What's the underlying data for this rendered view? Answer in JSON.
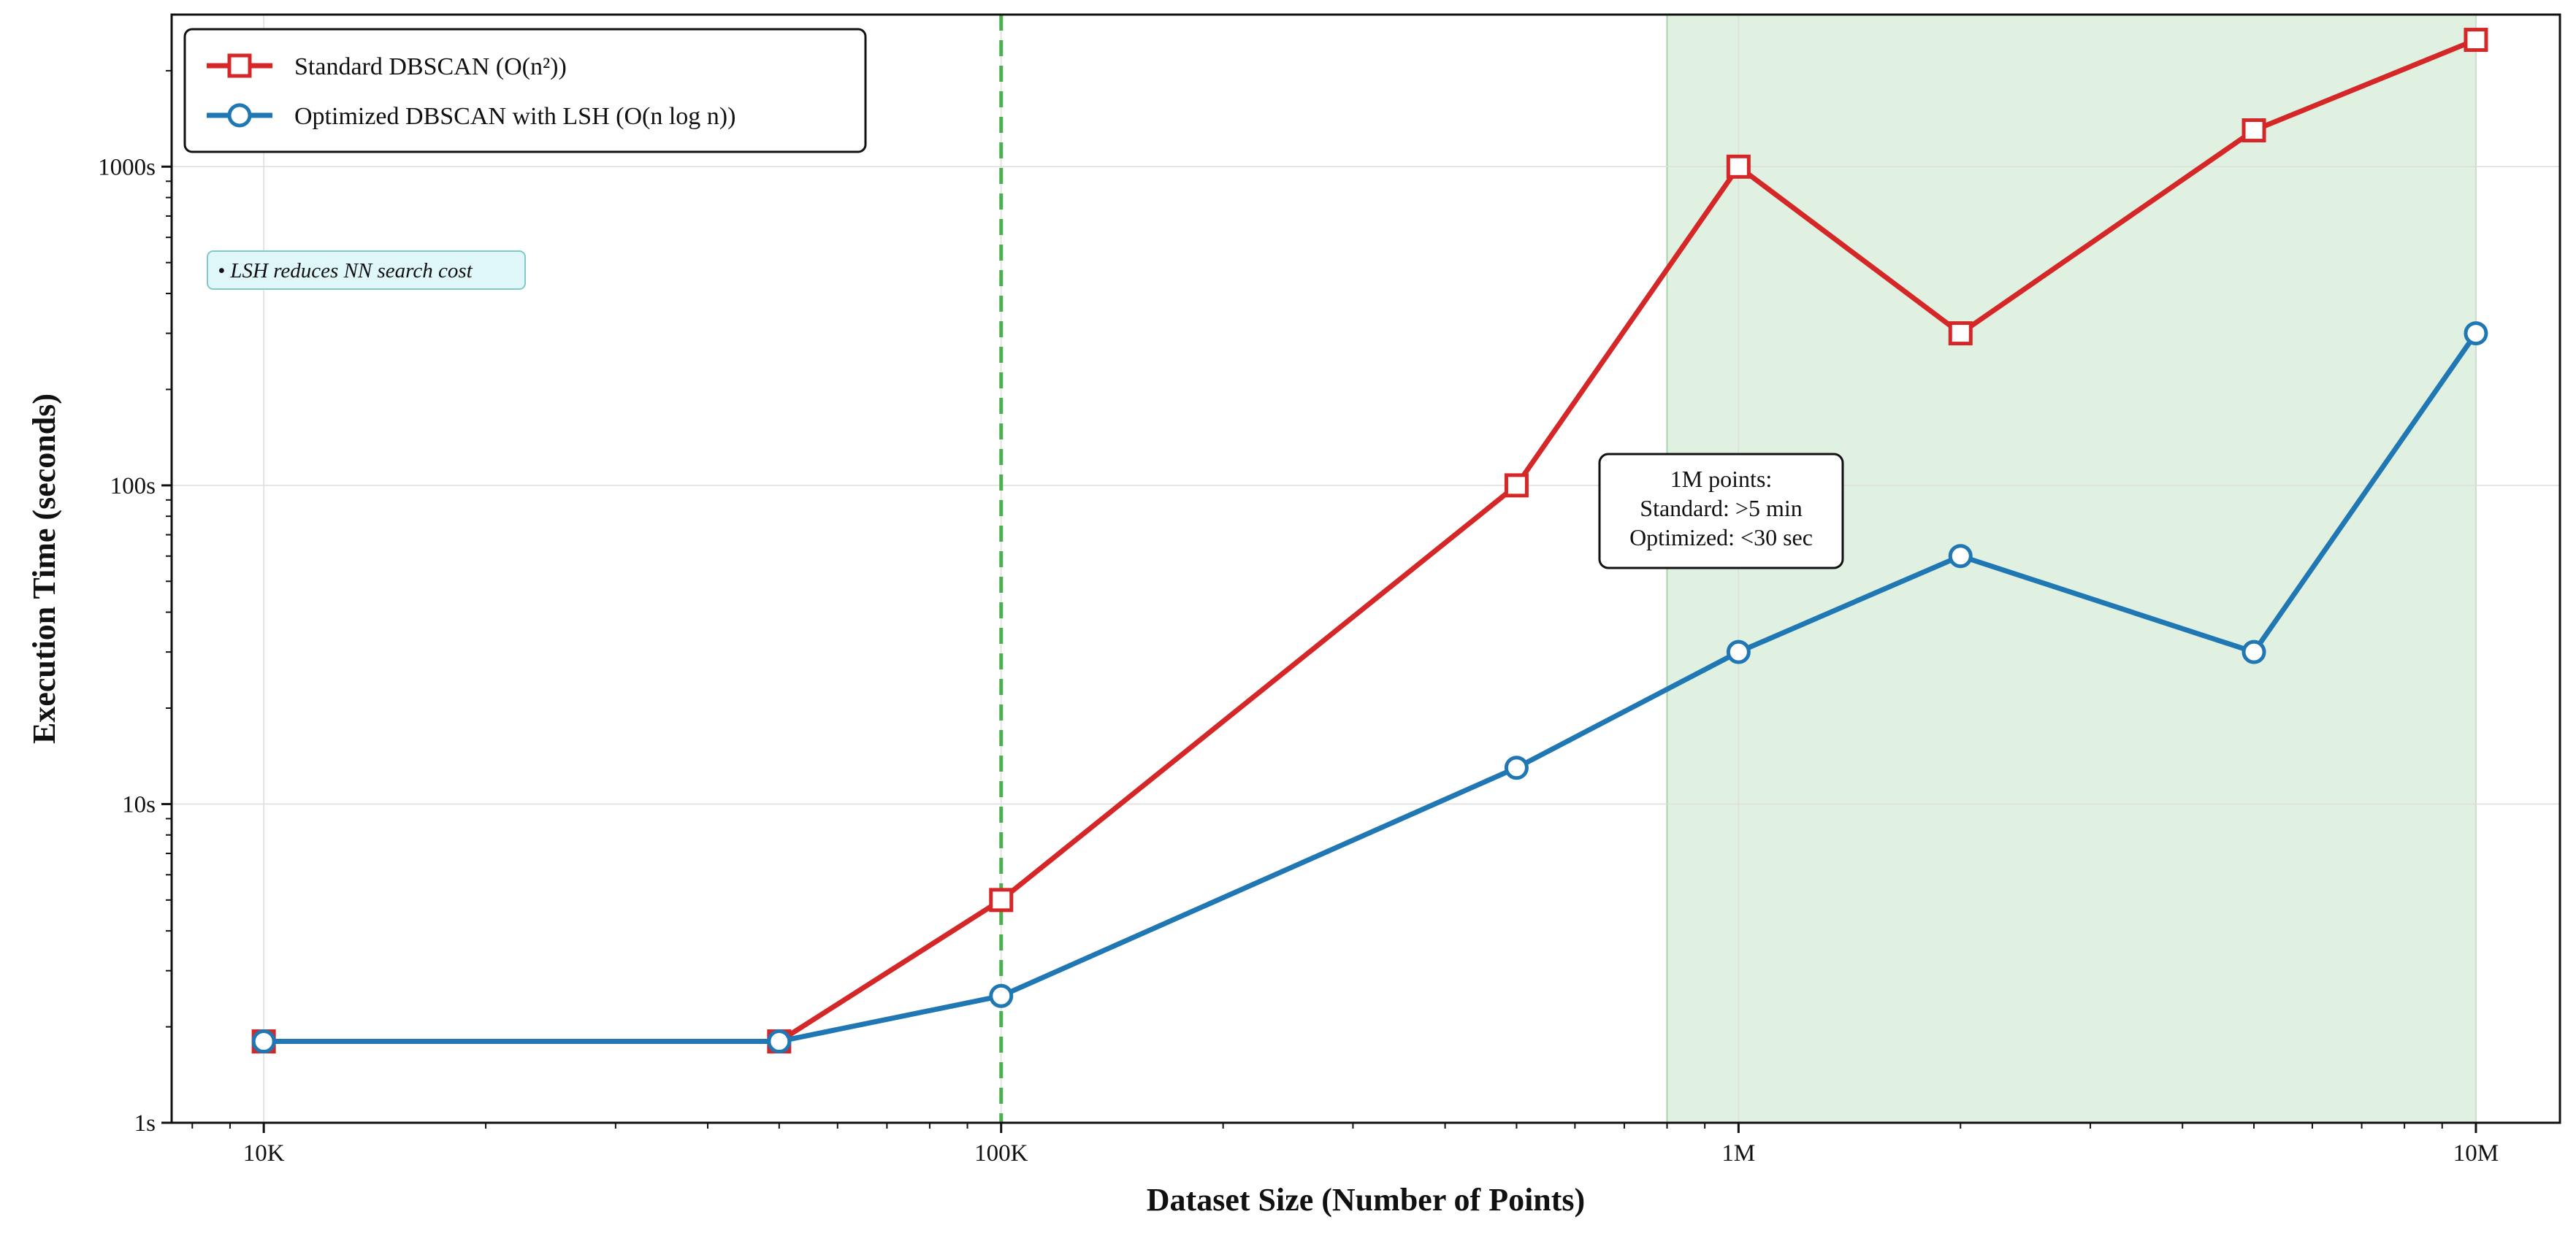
{
  "chart_data": {
    "type": "line",
    "title": "",
    "xlabel": "Dataset Size (Number of Points)",
    "ylabel": "Execution Time (seconds)",
    "xscale": "log",
    "yscale": "log",
    "xlim": [
      7500,
      13000000
    ],
    "ylim": [
      1,
      3000
    ],
    "x_ticks": [
      {
        "value": 10000,
        "label": "10K"
      },
      {
        "value": 100000,
        "label": "100K"
      },
      {
        "value": 1000000,
        "label": "1M"
      },
      {
        "value": 10000000,
        "label": "10M"
      }
    ],
    "y_ticks": [
      {
        "value": 1,
        "label": "1s"
      },
      {
        "value": 10,
        "label": "10s"
      },
      {
        "value": 100,
        "label": "100s"
      },
      {
        "value": 1000,
        "label": "1000s"
      }
    ],
    "grid": true,
    "x": [
      10000,
      50000,
      100000,
      500000,
      1000000,
      2000000,
      5000000,
      10000000
    ],
    "series": [
      {
        "name": "Standard DBSCAN (O(n²))",
        "color": "#d62728",
        "marker": "square",
        "values": [
          1.8,
          1.8,
          5,
          100,
          1000,
          300,
          1300,
          2500
        ]
      },
      {
        "name": "Optimized DBSCAN with LSH (O(n log n))",
        "color": "#1f77b4",
        "marker": "circle",
        "values": [
          1.8,
          1.8,
          2.5,
          13,
          30,
          60,
          30,
          300
        ]
      }
    ],
    "vline": {
      "x": 100000,
      "color": "#4caf50",
      "style": "dashed"
    },
    "shaded_region": {
      "x_start": 800000,
      "x_end": 10000000,
      "color": "#c8e6c9"
    },
    "legend_position": "top-left",
    "annotation": {
      "lines": [
        "1M points:",
        "Standard: >5 min",
        "Optimized: <30 sec"
      ],
      "position": "center"
    },
    "note": {
      "text": "• LSH reduces NN search cost",
      "position": "upper-left"
    }
  }
}
